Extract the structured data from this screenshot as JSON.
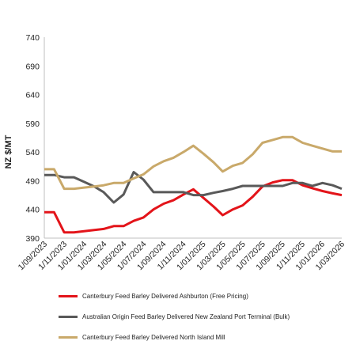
{
  "chart_data": {
    "type": "line",
    "ylabel": "NZ $/MT",
    "ylim": [
      390,
      740
    ],
    "yticks": [
      "740",
      "690",
      "640",
      "590",
      "540",
      "490",
      "440",
      "390"
    ],
    "ytick_values": [
      740,
      690,
      640,
      590,
      540,
      490,
      440,
      390
    ],
    "xticks": [
      "1/09/2023",
      "1/11/2023",
      "1/01/2024",
      "1/03/2024",
      "1/05/2024",
      "1/07/2024",
      "1/09/2024",
      "1/11/2024",
      "1/01/2025",
      "1/03/2025",
      "1/05/2025",
      "1/07/2025",
      "1/09/2025",
      "1/11/2025",
      "1/01/2026",
      "1/03/2026"
    ],
    "x_range": [
      "2023-09-01",
      "2026-03-01"
    ],
    "grid": "horizontal-none",
    "legend_position": "bottom",
    "series": [
      {
        "name": "Canterbury Feed Barley Delivered Ashburton (Free Pricing)",
        "color": "#e3141a",
        "x": [
          "2023-09-01",
          "2023-10-01",
          "2023-11-01",
          "2023-12-01",
          "2024-01-01",
          "2024-02-01",
          "2024-03-01",
          "2024-04-01",
          "2024-05-01",
          "2024-06-01",
          "2024-07-01",
          "2024-08-01",
          "2024-09-01",
          "2024-10-01",
          "2024-11-01",
          "2024-12-01",
          "2025-01-01",
          "2025-02-01",
          "2025-03-01",
          "2025-04-01",
          "2025-05-01",
          "2025-06-01",
          "2025-07-01",
          "2025-08-01",
          "2025-09-01",
          "2025-10-01",
          "2025-11-01",
          "2025-12-01",
          "2026-01-01",
          "2026-02-01",
          "2026-03-01"
        ],
        "values": [
          435,
          435,
          400,
          400,
          402,
          404,
          406,
          411,
          411,
          420,
          426,
          440,
          450,
          456,
          466,
          475,
          460,
          445,
          430,
          440,
          447,
          462,
          480,
          487,
          491,
          491,
          482,
          477,
          472,
          468,
          465
        ]
      },
      {
        "name": "Australian Origin Feed Barley Delivered New Zealand Port Terminal (Bulk)",
        "color": "#595959",
        "x": [
          "2023-09-01",
          "2023-10-01",
          "2023-11-01",
          "2023-12-01",
          "2024-01-01",
          "2024-02-01",
          "2024-03-01",
          "2024-04-01",
          "2024-05-01",
          "2024-06-01",
          "2024-07-01",
          "2024-08-01",
          "2024-09-01",
          "2024-10-01",
          "2024-11-01",
          "2024-12-01",
          "2025-01-01",
          "2025-02-01",
          "2025-03-01",
          "2025-04-01",
          "2025-05-01",
          "2025-06-01",
          "2025-07-01",
          "2025-08-01",
          "2025-09-01",
          "2025-10-01",
          "2025-11-01",
          "2025-12-01",
          "2026-01-01",
          "2026-02-01",
          "2026-03-01"
        ],
        "values": [
          500,
          500,
          496,
          496,
          488,
          480,
          470,
          452,
          466,
          505,
          492,
          470,
          470,
          470,
          470,
          465,
          465,
          469,
          472,
          476,
          481,
          481,
          481,
          481,
          481,
          486,
          486,
          481,
          486,
          482,
          476
        ]
      },
      {
        "name": "Canterbury Feed Barley Delivered North Island Mill",
        "color": "#c9a96a",
        "x": [
          "2023-09-01",
          "2023-10-01",
          "2023-11-01",
          "2023-12-01",
          "2024-01-01",
          "2024-02-01",
          "2024-03-01",
          "2024-04-01",
          "2024-05-01",
          "2024-06-01",
          "2024-07-01",
          "2024-08-01",
          "2024-09-01",
          "2024-10-01",
          "2024-11-01",
          "2024-12-01",
          "2025-01-01",
          "2025-02-01",
          "2025-03-01",
          "2025-04-01",
          "2025-05-01",
          "2025-06-01",
          "2025-07-01",
          "2025-08-01",
          "2025-09-01",
          "2025-10-01",
          "2025-11-01",
          "2025-12-01",
          "2026-01-01",
          "2026-02-01",
          "2026-03-01"
        ],
        "values": [
          510,
          510,
          476,
          476,
          478,
          480,
          482,
          486,
          486,
          494,
          501,
          515,
          524,
          530,
          540,
          551,
          537,
          522,
          506,
          516,
          521,
          536,
          556,
          561,
          566,
          566,
          556,
          551,
          546,
          541,
          541
        ]
      }
    ]
  }
}
